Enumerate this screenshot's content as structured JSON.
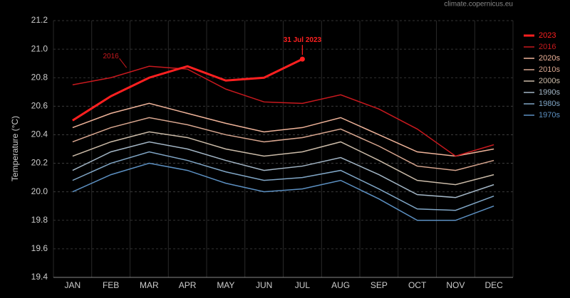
{
  "chart_data": {
    "type": "line",
    "source": "climate.copernicus.eu",
    "ylabel": "Temperature (°C)",
    "categories": [
      "JAN",
      "FEB",
      "MAR",
      "APR",
      "MAY",
      "JUN",
      "JUL",
      "AUG",
      "SEP",
      "OCT",
      "NOV",
      "DEC"
    ],
    "series": [
      {
        "name": "2023",
        "color": "#ff2020",
        "values": [
          20.5,
          20.67,
          20.8,
          20.88,
          20.78,
          20.8,
          20.93,
          null,
          null,
          null,
          null,
          null
        ]
      },
      {
        "name": "2016",
        "color": "#c8191e",
        "values": [
          20.75,
          20.8,
          20.88,
          20.86,
          20.72,
          20.63,
          20.62,
          20.68,
          20.58,
          20.44,
          20.25,
          20.33
        ]
      },
      {
        "name": "2020s",
        "color": "#f0b49a",
        "values": [
          20.45,
          20.55,
          20.62,
          20.55,
          20.48,
          20.42,
          20.45,
          20.52,
          20.4,
          20.28,
          20.25,
          20.3
        ]
      },
      {
        "name": "2010s",
        "color": "#d9a790",
        "values": [
          20.35,
          20.45,
          20.52,
          20.47,
          20.4,
          20.35,
          20.38,
          20.44,
          20.32,
          20.18,
          20.15,
          20.22
        ]
      },
      {
        "name": "2000s",
        "color": "#cbbba8",
        "values": [
          20.25,
          20.35,
          20.42,
          20.38,
          20.3,
          20.25,
          20.28,
          20.35,
          20.22,
          20.08,
          20.05,
          20.12
        ]
      },
      {
        "name": "1990s",
        "color": "#a3b6c6",
        "values": [
          20.15,
          20.28,
          20.35,
          20.3,
          20.22,
          20.15,
          20.18,
          20.24,
          20.12,
          19.98,
          19.96,
          20.05
        ]
      },
      {
        "name": "1980s",
        "color": "#80a6c6",
        "values": [
          20.08,
          20.2,
          20.28,
          20.22,
          20.14,
          20.08,
          20.1,
          20.15,
          20.02,
          19.88,
          19.87,
          19.97
        ]
      },
      {
        "name": "1970s",
        "color": "#5c90c2",
        "values": [
          20.0,
          20.12,
          20.2,
          20.15,
          20.06,
          20.0,
          20.02,
          20.08,
          19.95,
          19.8,
          19.8,
          19.9
        ]
      }
    ],
    "annotations": [
      "31 Jul 2023",
      "2016"
    ],
    "ylim": [
      19.4,
      21.2
    ],
    "yticks": [
      19.4,
      19.6,
      19.8,
      {
        "value": 20,
        "label": "20.0"
      },
      20.2,
      20.4,
      20.6,
      20.8,
      {
        "value": 21,
        "label": "21.0"
      },
      21.2
    ],
    "grid": true,
    "legend": "top-right"
  }
}
